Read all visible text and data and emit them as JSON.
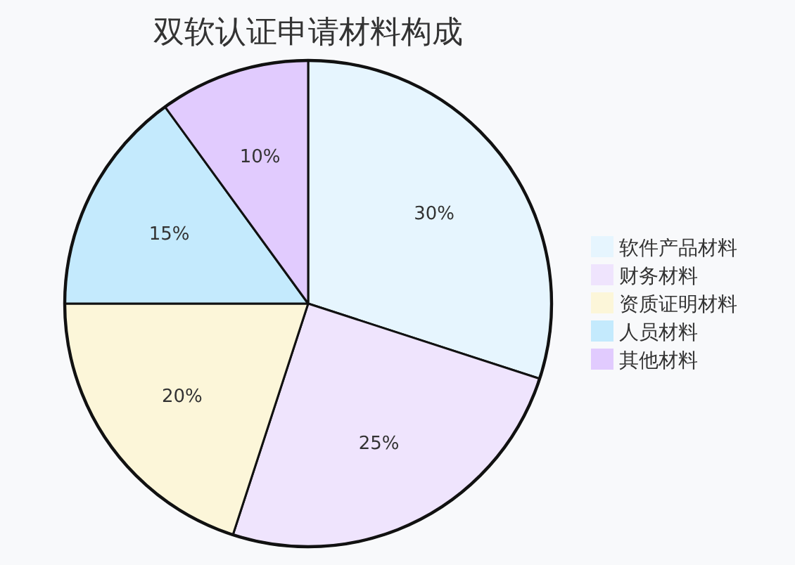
{
  "chart_data": {
    "type": "pie",
    "title": "双软认证申请材料构成",
    "categories": [
      "软件产品材料",
      "财务材料",
      "资质证明材料",
      "人员材料",
      "其他材料"
    ],
    "values": [
      30,
      25,
      20,
      15,
      10
    ],
    "colors": [
      "#e6f5fe",
      "#efe4fd",
      "#fcf6d9",
      "#c4eafd",
      "#e1cbfe"
    ],
    "value_labels": [
      "30%",
      "25%",
      "20%",
      "15%",
      "10%"
    ],
    "legend": "right"
  }
}
